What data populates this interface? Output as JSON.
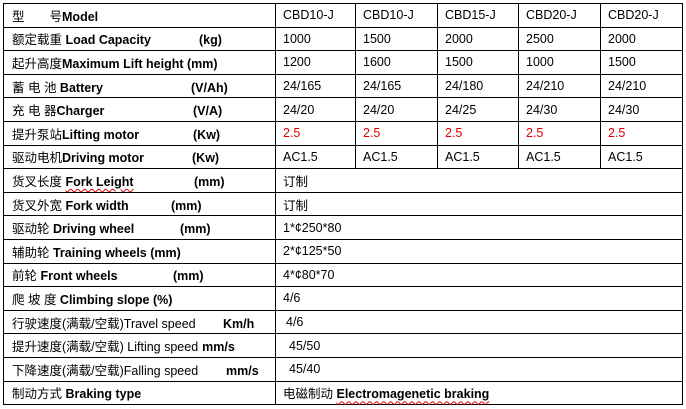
{
  "models": [
    "CBD10-J",
    "CBD10-J",
    "CBD15-J",
    "CBD20-J",
    "CBD20-J"
  ],
  "header": {
    "cn": "型　　号",
    "en": "Model"
  },
  "rows": [
    {
      "cn": "额定载重 ",
      "en": "Load Capacity",
      "unit": "(kg)",
      "values": [
        "1000",
        "1500",
        "2000",
        "2500",
        "2000"
      ]
    },
    {
      "cn": "起升高度",
      "en": "Maximum Lift height (mm)",
      "unit": "",
      "values": [
        "1200",
        "1600",
        "1500",
        "1000",
        "1500"
      ]
    },
    {
      "cn": "蓄 电 池 ",
      "en": "Battery",
      "unit": "(V/Ah)",
      "values": [
        "24/165",
        "24/165",
        "24/180",
        "24/210",
        "24/210"
      ]
    },
    {
      "cn": "充  电  器",
      "en": "Charger",
      "unit": "(V/A)",
      "values": [
        "24/20",
        "24/20",
        "24/25",
        "24/30",
        "24/30"
      ]
    },
    {
      "cn": "提升泵站",
      "en": "Lifting motor",
      "unit": "(Kw)",
      "values": [
        "2.5",
        "2.5",
        "2.5",
        "2.5",
        "2.5"
      ],
      "value_color": "#e00000"
    },
    {
      "cn": "驱动电机",
      "en": "Driving motor",
      "unit": "(Kw)",
      "values": [
        "AC1.5",
        "AC1.5",
        "AC1.5",
        "AC1.5",
        "AC1.5"
      ]
    },
    {
      "cn": "货叉长度 ",
      "en": "Fork Leight",
      "unit": "(mm)",
      "value": "订制"
    },
    {
      "cn": "货叉外宽 ",
      "en": "Fork width",
      "unit": "(mm)",
      "value": "订制"
    },
    {
      "cn": "驱动轮  ",
      "en": "Driving wheel",
      "unit": "(mm)",
      "value": "1*¢250*80"
    },
    {
      "cn": "辅助轮 ",
      "en": "Training wheels (mm)",
      "unit": "",
      "value": "2*¢125*50"
    },
    {
      "cn": "前轮 ",
      "en": "Front wheels",
      "unit": "(mm)",
      "value": "4*¢80*70"
    },
    {
      "cn": "爬  坡  度 ",
      "en": "Climbing slope (%)",
      "unit": "",
      "value": "4/6"
    },
    {
      "cn": "行驶速度(满载/空载)Travel speed",
      "en": "",
      "unit": "Km/h",
      "value": "4/6"
    },
    {
      "cn": "提升速度(满载/空载) Lifting speed ",
      "en": "",
      "unit": "mm/s",
      "value": "45/50"
    },
    {
      "cn": "下降速度(满载/空载)Falling speed",
      "en": "",
      "unit": "mm/s",
      "value": "45/40"
    },
    {
      "cn": "制动方式 ",
      "en": "Braking type",
      "unit": "",
      "value_cn": "电磁制动 ",
      "value_en": "Electromagenetic braking"
    }
  ]
}
